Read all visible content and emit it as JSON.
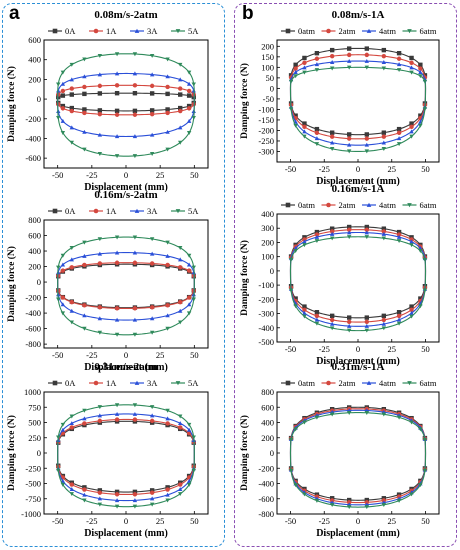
{
  "panel_labels": {
    "a": "a",
    "b": "b"
  },
  "chart_data": [
    {
      "type": "line",
      "panel": "a",
      "title": "0.08m/s-2atm",
      "xlabel": "Displacement (mm)",
      "ylabel": "Damping force (N)",
      "xlim": [
        -60,
        60
      ],
      "ylim": [
        -700,
        600
      ],
      "xticks": [
        "-50",
        "-25",
        "0",
        "25",
        "50"
      ],
      "yticks": [
        "-600",
        "-400",
        "-200",
        "0",
        "200",
        "400",
        "600"
      ],
      "legend": "top",
      "series": [
        {
          "name": "0A",
          "upper": 60,
          "lower": -120
        },
        {
          "name": "1A",
          "upper": 140,
          "lower": -160
        },
        {
          "name": "3A",
          "upper": 260,
          "lower": -380
        },
        {
          "name": "5A",
          "upper": 460,
          "lower": -580
        }
      ]
    },
    {
      "type": "line",
      "panel": "a",
      "title": "0.16m/s-2atm",
      "xlabel": "Displacement (mm)",
      "ylabel": "Damping force (N)",
      "xlim": [
        -60,
        60
      ],
      "ylim": [
        -850,
        800
      ],
      "xticks": [
        "-50",
        "-25",
        "0",
        "25",
        "50"
      ],
      "yticks": [
        "-800",
        "-600",
        "-400",
        "-200",
        "0",
        "200",
        "400",
        "600",
        "800"
      ],
      "legend": "top",
      "series": [
        {
          "name": "0A",
          "upper": 230,
          "lower": -330
        },
        {
          "name": "1A",
          "upper": 250,
          "lower": -340
        },
        {
          "name": "3A",
          "upper": 380,
          "lower": -490
        },
        {
          "name": "5A",
          "upper": 580,
          "lower": -680
        }
      ]
    },
    {
      "type": "line",
      "panel": "a",
      "title": "0.31m/s-2atm",
      "xlabel": "Displacement (mm)",
      "ylabel": "Damping force (N)",
      "xlim": [
        -60,
        60
      ],
      "ylim": [
        -1000,
        1000
      ],
      "xticks": [
        "-50",
        "-25",
        "0",
        "25",
        "50"
      ],
      "yticks": [
        "-1000",
        "-750",
        "-500",
        "-250",
        "0",
        "250",
        "500",
        "750",
        "1000"
      ],
      "legend": "top",
      "series": [
        {
          "name": "0A",
          "upper": 520,
          "lower": -640
        },
        {
          "name": "1A",
          "upper": 550,
          "lower": -680
        },
        {
          "name": "3A",
          "upper": 640,
          "lower": -780
        },
        {
          "name": "5A",
          "upper": 790,
          "lower": -880
        }
      ]
    },
    {
      "type": "line",
      "panel": "b",
      "title": "0.08m/s-1A",
      "xlabel": "Displacement (mm)",
      "ylabel": "Damping force (N)",
      "xlim": [
        -60,
        60
      ],
      "ylim": [
        -350,
        230
      ],
      "xticks": [
        "-50",
        "-25",
        "0",
        "25",
        "50"
      ],
      "yticks": [
        "-300",
        "-250",
        "-200",
        "-150",
        "-100",
        "-50",
        "0",
        "50",
        "100",
        "150",
        "200"
      ],
      "legend": "top",
      "series": [
        {
          "name": "0atm",
          "upper": 190,
          "lower": -220
        },
        {
          "name": "2atm",
          "upper": 160,
          "lower": -240
        },
        {
          "name": "4atm",
          "upper": 130,
          "lower": -270
        },
        {
          "name": "6atm",
          "upper": 100,
          "lower": -300
        }
      ]
    },
    {
      "type": "line",
      "panel": "b",
      "title": "0.16m/s-1A",
      "xlabel": "Displacement (mm)",
      "ylabel": "Damping force (N)",
      "xlim": [
        -60,
        60
      ],
      "ylim": [
        -500,
        400
      ],
      "xticks": [
        "-50",
        "-25",
        "0",
        "25",
        "50"
      ],
      "yticks": [
        "-500",
        "-400",
        "-300",
        "-200",
        "-100",
        "0",
        "100",
        "200",
        "300",
        "400"
      ],
      "legend": "top",
      "series": [
        {
          "name": "0atm",
          "upper": 310,
          "lower": -330
        },
        {
          "name": "2atm",
          "upper": 290,
          "lower": -360
        },
        {
          "name": "4atm",
          "upper": 270,
          "lower": -390
        },
        {
          "name": "6atm",
          "upper": 240,
          "lower": -420
        }
      ]
    },
    {
      "type": "line",
      "panel": "b",
      "title": "0.31m/s-1A",
      "xlabel": "Displacement (mm)",
      "ylabel": "Damping force (N)",
      "xlim": [
        -60,
        60
      ],
      "ylim": [
        -800,
        800
      ],
      "xticks": [
        "-50",
        "-25",
        "0",
        "25",
        "50"
      ],
      "yticks": [
        "-800",
        "-600",
        "-400",
        "-200",
        "0",
        "200",
        "400",
        "600",
        "800"
      ],
      "legend": "top",
      "series": [
        {
          "name": "0atm",
          "upper": 600,
          "lower": -620
        },
        {
          "name": "2atm",
          "upper": 580,
          "lower": -650
        },
        {
          "name": "4atm",
          "upper": 560,
          "lower": -680
        },
        {
          "name": "6atm",
          "upper": 530,
          "lower": -710
        }
      ]
    }
  ],
  "colors": {
    "series": [
      "#3a3a3a",
      "#d4483f",
      "#2a4fd8",
      "#2f8a5b"
    ],
    "panel_a_border": "#2b8fd6",
    "panel_b_border": "#8a4fb3"
  },
  "markers": [
    "square",
    "circle",
    "triangle-up",
    "triangle-down"
  ]
}
